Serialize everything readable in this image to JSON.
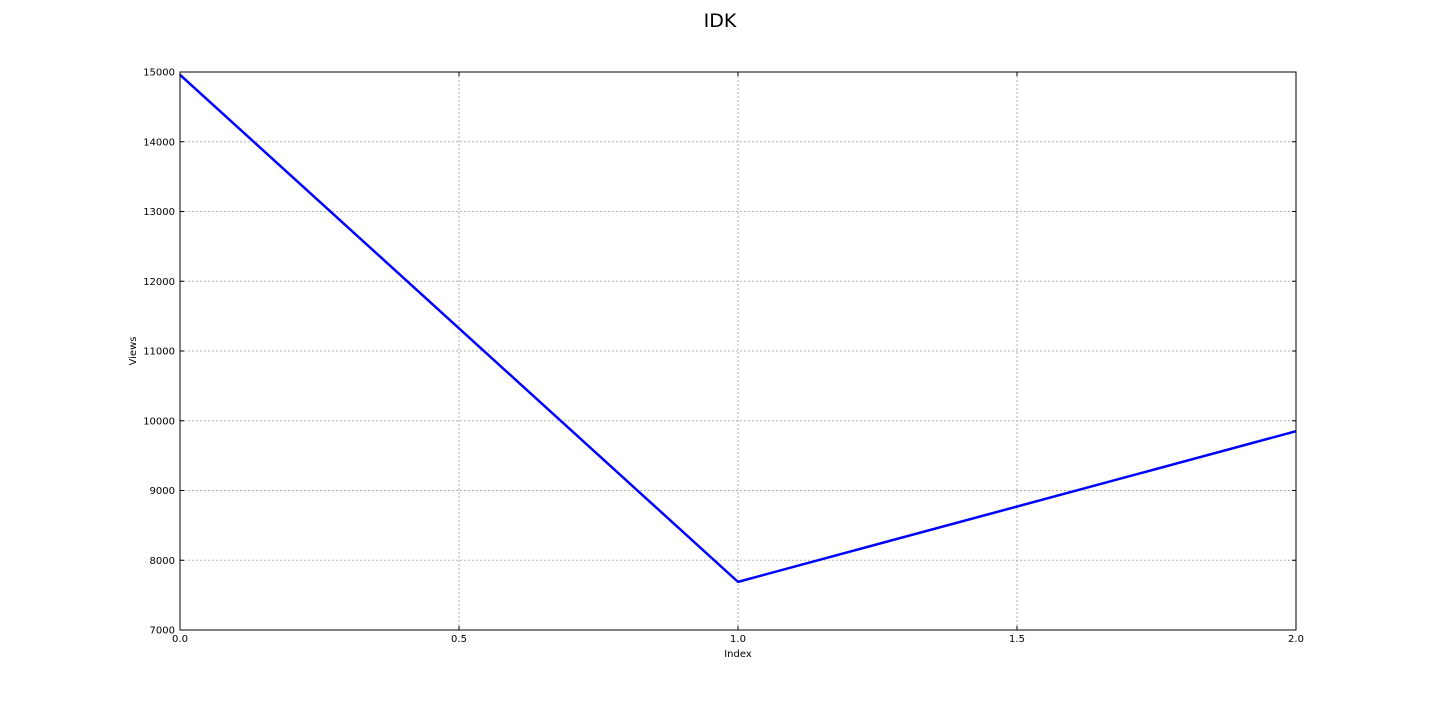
{
  "chart_data": {
    "type": "line",
    "title": "IDK",
    "xlabel": "Index",
    "ylabel": "Views",
    "x": [
      0,
      1,
      2
    ],
    "series": [
      {
        "values": [
          14960,
          7690,
          9850
        ],
        "color": "#0000ff"
      }
    ],
    "xlim": [
      0,
      2
    ],
    "ylim": [
      7000,
      15000
    ],
    "xticks": [
      0,
      0.5,
      1,
      1.5,
      2
    ],
    "xtick_labels": [
      "0.0",
      "0.5",
      "1.0",
      "1.5",
      "2.0"
    ],
    "yticks": [
      7000,
      8000,
      9000,
      10000,
      11000,
      12000,
      13000,
      14000,
      15000
    ],
    "ytick_labels": [
      "7000",
      "8000",
      "9000",
      "10000",
      "11000",
      "12000",
      "13000",
      "14000",
      "15000"
    ],
    "grid": true,
    "legend": "none"
  }
}
